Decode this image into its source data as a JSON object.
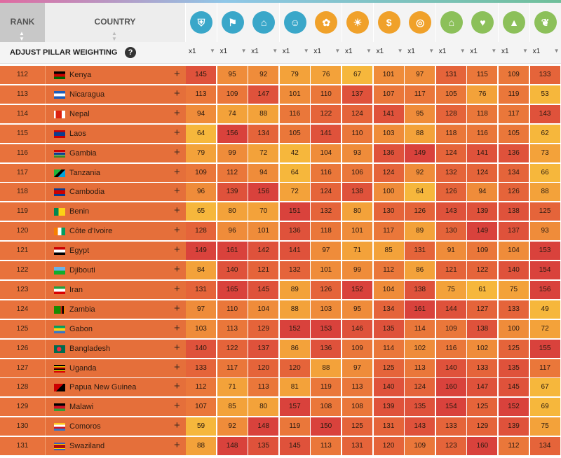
{
  "header": {
    "rank_label": "RANK",
    "country_label": "COUNTRY"
  },
  "pillars": [
    {
      "icon": "shield-icon",
      "color": "#3aa7c9",
      "glyph": "⛨"
    },
    {
      "icon": "runner-icon",
      "color": "#3aa7c9",
      "glyph": "⚑"
    },
    {
      "icon": "bank-icon",
      "color": "#3aa7c9",
      "glyph": "⌂"
    },
    {
      "icon": "people-icon",
      "color": "#3aa7c9",
      "glyph": "☺"
    },
    {
      "icon": "plant-icon",
      "color": "#f0a12a",
      "glyph": "✿"
    },
    {
      "icon": "lightbulb-icon",
      "color": "#f0a12a",
      "glyph": "☀"
    },
    {
      "icon": "money-bag-icon",
      "color": "#f0a12a",
      "glyph": "$"
    },
    {
      "icon": "coin-icon",
      "color": "#f0a12a",
      "glyph": "◎"
    },
    {
      "icon": "house-icon",
      "color": "#8cc05a",
      "glyph": "⌂"
    },
    {
      "icon": "heart-icon",
      "color": "#8cc05a",
      "glyph": "♥"
    },
    {
      "icon": "graduation-cap-icon",
      "color": "#8cc05a",
      "glyph": "▲"
    },
    {
      "icon": "leaf-icon",
      "color": "#8cc05a",
      "glyph": "❦"
    }
  ],
  "weighting": {
    "label": "ADJUST PILLAR WEIGHTING",
    "help": "?",
    "values": [
      "x1",
      "x1",
      "x1",
      "x1",
      "x1",
      "x1",
      "x1",
      "x1",
      "x1",
      "x1",
      "x1",
      "x1"
    ]
  },
  "rows": [
    {
      "rank": "112",
      "country": "Kenya",
      "flag": "kenya",
      "values": [
        "145",
        "95",
        "92",
        "79",
        "76",
        "67",
        "101",
        "97",
        "131",
        "115",
        "109",
        "133"
      ]
    },
    {
      "rank": "113",
      "country": "Nicaragua",
      "flag": "nicaragua",
      "values": [
        "113",
        "109",
        "147",
        "101",
        "110",
        "137",
        "107",
        "117",
        "105",
        "76",
        "119",
        "53"
      ]
    },
    {
      "rank": "114",
      "country": "Nepal",
      "flag": "nepal",
      "values": [
        "94",
        "74",
        "88",
        "116",
        "122",
        "124",
        "141",
        "95",
        "128",
        "118",
        "117",
        "143"
      ]
    },
    {
      "rank": "115",
      "country": "Laos",
      "flag": "laos",
      "values": [
        "64",
        "156",
        "134",
        "105",
        "141",
        "110",
        "103",
        "88",
        "118",
        "116",
        "105",
        "62"
      ]
    },
    {
      "rank": "116",
      "country": "Gambia",
      "flag": "gambia",
      "values": [
        "79",
        "99",
        "72",
        "42",
        "104",
        "93",
        "136",
        "149",
        "124",
        "141",
        "136",
        "73"
      ]
    },
    {
      "rank": "117",
      "country": "Tanzania",
      "flag": "tanzania",
      "values": [
        "109",
        "112",
        "94",
        "64",
        "116",
        "106",
        "124",
        "92",
        "132",
        "124",
        "134",
        "66"
      ]
    },
    {
      "rank": "118",
      "country": "Cambodia",
      "flag": "cambodia",
      "values": [
        "96",
        "139",
        "156",
        "72",
        "124",
        "138",
        "100",
        "64",
        "126",
        "94",
        "126",
        "88"
      ]
    },
    {
      "rank": "119",
      "country": "Benin",
      "flag": "benin",
      "values": [
        "65",
        "80",
        "70",
        "151",
        "132",
        "80",
        "130",
        "126",
        "143",
        "139",
        "138",
        "125"
      ]
    },
    {
      "rank": "120",
      "country": "Côte d'Ivoire",
      "flag": "ivorycoast",
      "values": [
        "128",
        "96",
        "101",
        "136",
        "118",
        "101",
        "117",
        "89",
        "130",
        "149",
        "137",
        "93"
      ]
    },
    {
      "rank": "121",
      "country": "Egypt",
      "flag": "egypt",
      "values": [
        "149",
        "161",
        "142",
        "141",
        "97",
        "71",
        "85",
        "131",
        "91",
        "109",
        "104",
        "153"
      ]
    },
    {
      "rank": "122",
      "country": "Djibouti",
      "flag": "djibouti",
      "values": [
        "84",
        "140",
        "121",
        "132",
        "101",
        "99",
        "112",
        "86",
        "121",
        "122",
        "140",
        "154"
      ]
    },
    {
      "rank": "123",
      "country": "Iran",
      "flag": "iran",
      "values": [
        "131",
        "165",
        "145",
        "89",
        "126",
        "152",
        "104",
        "138",
        "75",
        "61",
        "75",
        "156"
      ]
    },
    {
      "rank": "124",
      "country": "Zambia",
      "flag": "zambia",
      "values": [
        "97",
        "110",
        "104",
        "88",
        "103",
        "95",
        "134",
        "161",
        "144",
        "127",
        "133",
        "49"
      ]
    },
    {
      "rank": "125",
      "country": "Gabon",
      "flag": "gabon",
      "values": [
        "103",
        "113",
        "129",
        "152",
        "153",
        "146",
        "135",
        "114",
        "109",
        "138",
        "100",
        "72"
      ]
    },
    {
      "rank": "126",
      "country": "Bangladesh",
      "flag": "bangladesh",
      "values": [
        "140",
        "122",
        "137",
        "86",
        "136",
        "109",
        "114",
        "102",
        "116",
        "102",
        "125",
        "155"
      ]
    },
    {
      "rank": "127",
      "country": "Uganda",
      "flag": "uganda",
      "values": [
        "133",
        "117",
        "120",
        "120",
        "88",
        "97",
        "125",
        "113",
        "140",
        "133",
        "135",
        "117"
      ]
    },
    {
      "rank": "128",
      "country": "Papua New Guinea",
      "flag": "png",
      "values": [
        "112",
        "71",
        "113",
        "81",
        "119",
        "113",
        "140",
        "124",
        "160",
        "147",
        "145",
        "67"
      ]
    },
    {
      "rank": "129",
      "country": "Malawi",
      "flag": "malawi",
      "values": [
        "107",
        "85",
        "80",
        "157",
        "108",
        "108",
        "139",
        "135",
        "154",
        "125",
        "152",
        "69"
      ]
    },
    {
      "rank": "130",
      "country": "Comoros",
      "flag": "comoros",
      "values": [
        "59",
        "92",
        "148",
        "119",
        "150",
        "125",
        "131",
        "143",
        "133",
        "129",
        "139",
        "75"
      ]
    },
    {
      "rank": "131",
      "country": "Swaziland",
      "flag": "swaziland",
      "values": [
        "88",
        "148",
        "135",
        "145",
        "113",
        "131",
        "120",
        "109",
        "123",
        "160",
        "112",
        "134"
      ]
    }
  ]
}
